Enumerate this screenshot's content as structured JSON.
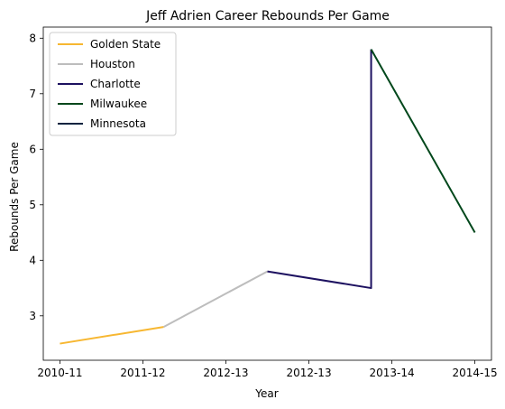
{
  "chart_data": {
    "type": "line",
    "title": "Jeff Adrien Career Rebounds Per Game",
    "xlabel": "Year",
    "ylabel": "Rebounds Per Game",
    "x_ticks": [
      "2010-11",
      "2011-12",
      "2012-13",
      "2012-13",
      "2013-14",
      "2014-15"
    ],
    "xlim": [
      -0.2,
      5.2
    ],
    "ylim": [
      2.2,
      8.2
    ],
    "y_ticks": [
      3,
      4,
      5,
      6,
      7,
      8
    ],
    "grid": false,
    "legend_position": "top-left",
    "series": [
      {
        "name": "Golden State",
        "color": "#f7b731",
        "points": [
          [
            0,
            2.5
          ],
          [
            1.25,
            2.8
          ]
        ]
      },
      {
        "name": "Houston",
        "color": "#bdbdbd",
        "points": [
          [
            1.25,
            2.8
          ],
          [
            2.5,
            3.8
          ]
        ]
      },
      {
        "name": "Charlotte",
        "color": "#1d1160",
        "points": [
          [
            2.5,
            3.8
          ],
          [
            3.75,
            3.5
          ],
          [
            3.75,
            7.8
          ]
        ]
      },
      {
        "name": "Milwaukee",
        "color": "#00471b",
        "points": [
          [
            3.75,
            7.8
          ],
          [
            5,
            4.5
          ]
        ]
      },
      {
        "name": "Minnesota",
        "color": "#0c2340",
        "points": []
      }
    ]
  }
}
